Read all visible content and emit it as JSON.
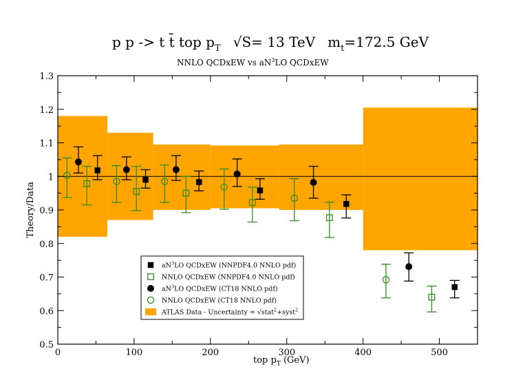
{
  "chart_data": {
    "type": "scatter",
    "title": {
      "main": "p p -> t t̄   top p",
      "main_sub": "T",
      "energy": "√S= 13 TeV",
      "mass": "m",
      "mass_sub": "t",
      "mass_value": "=172.5 GeV"
    },
    "subtitle": {
      "left": "NNLO QCDxEW  vs  aN",
      "sup": "3",
      "right": "LO QCDxEW"
    },
    "xlabel": {
      "main": "top p",
      "sub": "T",
      "unit": " (GeV)"
    },
    "ylabel": "Theory/Data",
    "xlim": [
      0,
      550
    ],
    "ylim": [
      0.5,
      1.3
    ],
    "xticks": [
      0,
      100,
      200,
      300,
      400,
      500
    ],
    "xtick_labels": [
      "0",
      "100",
      "200",
      "300",
      "400",
      "500"
    ],
    "yticks": [
      0.5,
      0.6,
      0.7,
      0.8,
      0.9,
      1.0,
      1.1,
      1.2,
      1.3
    ],
    "ytick_labels": [
      "0.5",
      "0.6",
      "0.7",
      "0.8",
      "0.9",
      "1",
      "1.1",
      "1.2",
      "1.3"
    ],
    "reference_line": 1.0,
    "data_uncertainty_bands": [
      {
        "x0": 0,
        "x1": 65,
        "low": 0.82,
        "high": 1.18
      },
      {
        "x0": 65,
        "x1": 125,
        "low": 0.87,
        "high": 1.13
      },
      {
        "x0": 125,
        "x1": 200,
        "low": 0.9,
        "high": 1.095
      },
      {
        "x0": 200,
        "x1": 290,
        "low": 0.905,
        "high": 1.092
      },
      {
        "x0": 290,
        "x1": 400,
        "low": 0.9,
        "high": 1.095
      },
      {
        "x0": 400,
        "x1": 550,
        "low": 0.78,
        "high": 1.205
      }
    ],
    "series": [
      {
        "name": "aN3LO QCDxEW (NNPDF4.0 NNLO pdf)",
        "marker": "square-filled",
        "color": "#000000",
        "points": [
          {
            "x": 52,
            "y": 1.018,
            "ylo": 0.99,
            "yhi": 1.062
          },
          {
            "x": 115,
            "y": 0.99,
            "ylo": 0.965,
            "yhi": 1.02
          },
          {
            "x": 185,
            "y": 0.983,
            "ylo": 0.957,
            "yhi": 1.016
          },
          {
            "x": 265,
            "y": 0.958,
            "ylo": 0.932,
            "yhi": 0.993
          },
          {
            "x": 378,
            "y": 0.918,
            "ylo": 0.876,
            "yhi": 0.945
          },
          {
            "x": 520,
            "y": 0.67,
            "ylo": 0.638,
            "yhi": 0.69
          }
        ]
      },
      {
        "name": "NNLO QCDxEW (NNPDF4.0 NNLO pdf)",
        "marker": "square-open",
        "color": "#2e8b1e",
        "points": [
          {
            "x": 38,
            "y": 0.978,
            "ylo": 0.915,
            "yhi": 1.03
          },
          {
            "x": 103,
            "y": 0.955,
            "ylo": 0.898,
            "yhi": 1.03
          },
          {
            "x": 168,
            "y": 0.95,
            "ylo": 0.892,
            "yhi": 1.0
          },
          {
            "x": 255,
            "y": 0.922,
            "ylo": 0.864,
            "yhi": 0.968
          },
          {
            "x": 356,
            "y": 0.877,
            "ylo": 0.818,
            "yhi": 0.923
          },
          {
            "x": 490,
            "y": 0.64,
            "ylo": 0.596,
            "yhi": 0.673
          }
        ]
      },
      {
        "name": "aN3LO QCDxEW (CT18 NNLO pdf)",
        "marker": "circle-filled",
        "color": "#000000",
        "points": [
          {
            "x": 27,
            "y": 1.043,
            "ylo": 1.01,
            "yhi": 1.088
          },
          {
            "x": 90,
            "y": 1.02,
            "ylo": 0.99,
            "yhi": 1.058
          },
          {
            "x": 155,
            "y": 1.02,
            "ylo": 0.988,
            "yhi": 1.062
          },
          {
            "x": 235,
            "y": 1.007,
            "ylo": 0.97,
            "yhi": 1.052
          },
          {
            "x": 335,
            "y": 0.982,
            "ylo": 0.935,
            "yhi": 1.03
          },
          {
            "x": 460,
            "y": 0.731,
            "ylo": 0.688,
            "yhi": 0.772
          }
        ]
      },
      {
        "name": "NNLO QCDxEW (CT18 NNLO pdf)",
        "marker": "circle-open",
        "color": "#2e8b1e",
        "points": [
          {
            "x": 12,
            "y": 1.003,
            "ylo": 0.937,
            "yhi": 1.055
          },
          {
            "x": 77,
            "y": 0.985,
            "ylo": 0.922,
            "yhi": 1.032
          },
          {
            "x": 140,
            "y": 0.985,
            "ylo": 0.922,
            "yhi": 1.034
          },
          {
            "x": 218,
            "y": 0.968,
            "ylo": 0.902,
            "yhi": 1.022
          },
          {
            "x": 310,
            "y": 0.935,
            "ylo": 0.868,
            "yhi": 0.993
          },
          {
            "x": 430,
            "y": 0.692,
            "ylo": 0.638,
            "yhi": 0.738
          }
        ]
      }
    ],
    "legend": {
      "placement": "bottom-center",
      "entries": [
        {
          "marker": "square-filled",
          "color": "#000000",
          "pre": "aN",
          "sup": "3",
          "post": "LO QCDxEW (NNPDF4.0 NNLO pdf)"
        },
        {
          "marker": "square-open",
          "color": "#2e8b1e",
          "pre": "NNLO QCDxEW (NNPDF4.0 NNLO pdf)",
          "sup": "",
          "post": ""
        },
        {
          "marker": "circle-filled",
          "color": "#000000",
          "pre": "aN",
          "sup": "3",
          "post": "LO QCDxEW (CT18 NNLO pdf)"
        },
        {
          "marker": "circle-open",
          "color": "#2e8b1e",
          "pre": "NNLO QCDxEW (CT18 NNLO pdf)",
          "sup": "",
          "post": ""
        },
        {
          "marker": "band",
          "color": "#ffa500",
          "pre": "ATLAS Data  -  Uncertainty = √stat",
          "sup": "2",
          "post": "+syst",
          "sup2": "2"
        }
      ]
    },
    "colors": {
      "band": "#ffa500",
      "green": "#2e8b1e",
      "black": "#000000"
    }
  }
}
